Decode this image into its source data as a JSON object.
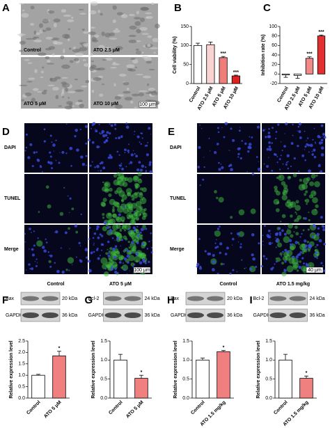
{
  "panel_a": {
    "panel": "A",
    "labels": [
      "Control",
      "ATO 2.5 μM",
      "ATO 5 μM",
      "ATO 10 μM"
    ],
    "scale_bar": "100 μm"
  },
  "panel_d": {
    "panel": "D",
    "rows": [
      "DAPI",
      "TUNEL",
      "Merge"
    ],
    "columns": [
      "Control",
      "ATO 5 μM"
    ],
    "scale_bar": "100 μm"
  },
  "panel_e": {
    "panel": "E",
    "rows": [
      "DAPI",
      "TUNEL",
      "Merge"
    ],
    "columns": [
      "Control",
      "ATO 1.5 mg/kg"
    ],
    "scale_bar": "40 μm"
  },
  "blots": [
    {
      "bands": [
        {
          "name": "Bax",
          "size": "20 kDa"
        },
        {
          "name": "GAPDH",
          "size": "36 kDa"
        }
      ]
    },
    {
      "bands": [
        {
          "name": "Bcl-2",
          "size": "24 kDa"
        },
        {
          "name": "GAPDH",
          "size": "36 kDa"
        }
      ]
    },
    {
      "bands": [
        {
          "name": "Bax",
          "size": "20 kDa"
        },
        {
          "name": "GAPDH",
          "size": "36 kDa"
        }
      ]
    },
    {
      "bands": [
        {
          "name": "Bcl-2",
          "size": "24 kDa"
        },
        {
          "name": "GAPDH",
          "size": "36 kDa"
        }
      ]
    }
  ],
  "chart_data": [
    {
      "type": "bar",
      "panel": "B",
      "ylabel": "Cell viability (%)",
      "categories": [
        "Control",
        "ATO 2.5 μM",
        "ATO 5 μM",
        "ATO 10 μM"
      ],
      "values": [
        100,
        102,
        68,
        20
      ],
      "errors": [
        6,
        7,
        3,
        2
      ],
      "significance": [
        null,
        null,
        "***",
        "***"
      ],
      "colors": [
        "#ffffff",
        "#f9d3d1",
        "#ef7d79",
        "#dd2222"
      ],
      "ylim": [
        0,
        150
      ],
      "yticks": [
        0,
        50,
        100,
        150
      ]
    },
    {
      "type": "bar",
      "panel": "C",
      "ylabel": "Inhibition rate (%)",
      "categories": [
        "Control",
        "ATO 2.5 μM",
        "ATO 5 μM",
        "ATO 10 μM"
      ],
      "values": [
        -2,
        -3,
        33,
        80
      ],
      "errors": [
        5,
        6,
        3,
        2
      ],
      "significance": [
        null,
        null,
        "***",
        "***"
      ],
      "colors": [
        "#ffffff",
        "#ffffff",
        "#f08a86",
        "#e23030"
      ],
      "ylim": [
        -20,
        100
      ],
      "yticks": [
        -20,
        0,
        20,
        40,
        60,
        80,
        100
      ]
    },
    {
      "type": "bar",
      "panel": "F",
      "ylabel": "Relative expression level",
      "categories": [
        "Control",
        "ATO 5 μM"
      ],
      "values": [
        1.0,
        1.85
      ],
      "errors": [
        0.04,
        0.2
      ],
      "significance": [
        null,
        "*"
      ],
      "colors": [
        "#ffffff",
        "#f08080"
      ],
      "ylim": [
        0,
        2.5
      ],
      "yticks": [
        {
          "value": 0,
          "label": "0.0"
        },
        0.5,
        {
          "value": 1,
          "label": "1.0"
        },
        1.5,
        {
          "value": 2,
          "label": "2.0"
        },
        2.5
      ]
    },
    {
      "type": "bar",
      "panel": "G",
      "ylabel": "Relative expression level",
      "categories": [
        "Control",
        "ATO 5 μM"
      ],
      "values": [
        1.0,
        0.52
      ],
      "errors": [
        0.15,
        0.08
      ],
      "significance": [
        null,
        "*"
      ],
      "colors": [
        "#ffffff",
        "#f08080"
      ],
      "ylim": [
        0,
        1.5
      ],
      "yticks": [
        {
          "value": 0,
          "label": "0.0"
        },
        0.5,
        {
          "value": 1,
          "label": "1.0"
        },
        1.5
      ]
    },
    {
      "type": "bar",
      "panel": "H",
      "ylabel": "Relative expression level",
      "categories": [
        "Control",
        "ATO 1.5 mg/kg"
      ],
      "values": [
        1.0,
        1.22
      ],
      "errors": [
        0.05,
        0.03
      ],
      "significance": [
        null,
        "*"
      ],
      "colors": [
        "#ffffff",
        "#f08080"
      ],
      "ylim": [
        0,
        1.5
      ],
      "yticks": [
        {
          "value": 0,
          "label": "0.0"
        },
        0.5,
        {
          "value": 1,
          "label": "1.0"
        },
        1.5
      ]
    },
    {
      "type": "bar",
      "panel": "I",
      "ylabel": "Relative expression level",
      "categories": [
        "Control",
        "ATO 1.5 mg/kg"
      ],
      "values": [
        1.0,
        0.52
      ],
      "errors": [
        0.15,
        0.06
      ],
      "significance": [
        null,
        "*"
      ],
      "colors": [
        "#ffffff",
        "#f08080"
      ],
      "ylim": [
        0,
        1.5
      ],
      "yticks": [
        {
          "value": 0,
          "label": "0.0"
        },
        0.5,
        {
          "value": 1,
          "label": "1.0"
        },
        1.5
      ]
    }
  ]
}
